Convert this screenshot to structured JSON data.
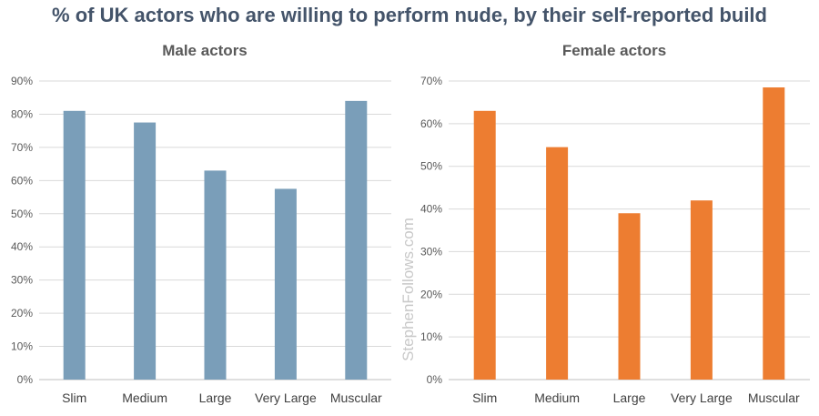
{
  "title": "% of UK actors who are willing to perform nude, by their self-reported build",
  "watermark": "StephenFollows.com",
  "chart_data": [
    {
      "type": "bar",
      "title": "Male actors",
      "categories": [
        "Slim",
        "Medium",
        "Large",
        "Very Large",
        "Muscular"
      ],
      "values": [
        81,
        77.5,
        63,
        57.5,
        84
      ],
      "ylim": [
        0,
        90
      ],
      "yticks": [
        0,
        10,
        20,
        30,
        40,
        50,
        60,
        70,
        80,
        90
      ],
      "yticklabels": [
        "0%",
        "10%",
        "20%",
        "30%",
        "40%",
        "50%",
        "60%",
        "70%",
        "80%",
        "90%"
      ],
      "color": "#7a9eb9",
      "grid": true
    },
    {
      "type": "bar",
      "title": "Female actors",
      "categories": [
        "Slim",
        "Medium",
        "Large",
        "Very Large",
        "Muscular"
      ],
      "values": [
        63,
        54.5,
        39,
        42,
        68.5
      ],
      "ylim": [
        0,
        70
      ],
      "yticks": [
        0,
        10,
        20,
        30,
        40,
        50,
        60,
        70
      ],
      "yticklabels": [
        "0%",
        "10%",
        "20%",
        "30%",
        "40%",
        "50%",
        "60%",
        "70%"
      ],
      "color": "#ed7d31",
      "grid": true
    }
  ]
}
